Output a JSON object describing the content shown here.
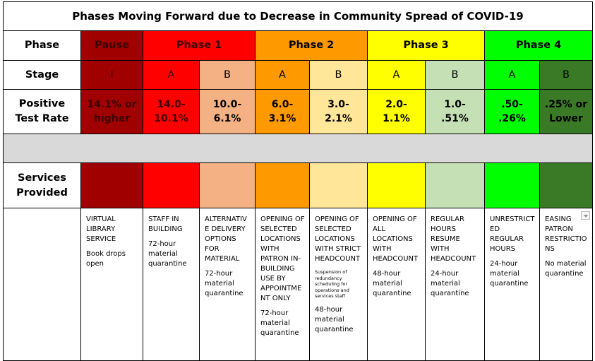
{
  "title": "Phases Moving Forward due to Decrease in Community Spread of COVID-19",
  "row_labels": {
    "phase": "Phase",
    "stage": "Stage",
    "rate_line1": "Positive",
    "rate_line2": "Test Rate",
    "services_line1": "Services",
    "services_line2": "Provided"
  },
  "phases": [
    {
      "label": "Pause",
      "color": "#a00000"
    },
    {
      "label": "Phase 1",
      "color": "#ff0000"
    },
    {
      "label": "Phase 2",
      "color": "#ff9900"
    },
    {
      "label": "Phase 3",
      "color": "#ffff00"
    },
    {
      "label": "Phase 4",
      "color": "#00ff00"
    }
  ],
  "stages": [
    {
      "stage": "I",
      "rate1": "14.1% or",
      "rate2": "higher",
      "color": "#a00000",
      "service": "VIRTUAL LIBRARY SERVICE",
      "note": "Book drops open",
      "small": "",
      "quarantine": ""
    },
    {
      "stage": "A",
      "rate1": "14.0-",
      "rate2": "10.1%",
      "color": "#ff0000",
      "service": "STAFF IN BUILDING",
      "note": "",
      "small": "",
      "quarantine": "72-hour material quarantine"
    },
    {
      "stage": "B",
      "rate1": "10.0-",
      "rate2": "6.1%",
      "color": "#f4b183",
      "service": "ALTERNATIVE DELIVERY OPTIONS FOR MATERIAL",
      "note": "",
      "small": "",
      "quarantine": "72-hour material quarantine"
    },
    {
      "stage": "A",
      "rate1": "6.0-",
      "rate2": "3.1%",
      "color": "#ff9900",
      "service": "OPENING OF SELECTED LOCATIONS WITH PATRON IN-BUILDING USE BY APPOINTMENT ONLY",
      "note": "",
      "small": "",
      "quarantine": "72-hour material quarantine"
    },
    {
      "stage": "B",
      "rate1": "3.0-",
      "rate2": "2.1%",
      "color": "#ffe699",
      "service": "OPENING OF SELECTED LOCATIONS WITH STRICT HEADCOUNT",
      "note": "",
      "small": "Suspension of redundancy scheduling for operations and services staff",
      "quarantine": "48-hour material quarantine"
    },
    {
      "stage": "A",
      "rate1": "2.0-",
      "rate2": "1.1%",
      "color": "#ffff00",
      "service": "OPENING OF ALL LOCATIONS WITH HEADCOUNT",
      "note": "",
      "small": "",
      "quarantine": "48-hour material quarantine"
    },
    {
      "stage": "B",
      "rate1": "1.0-",
      "rate2": ".51%",
      "color": "#c5e0b4",
      "service": "REGULAR HOURS RESUME WITH HEADCOUNT",
      "note": "",
      "small": "",
      "quarantine": "24-hour material quarantine"
    },
    {
      "stage": "A",
      "rate1": ".50-",
      "rate2": ".26%",
      "color": "#00ff00",
      "service": "UNRESTRICTED REGULAR HOURS",
      "note": "",
      "small": "",
      "quarantine": "24-hour material quarantine"
    },
    {
      "stage": "B",
      "rate1": ".25% or",
      "rate2": "Lower",
      "color": "#3a7a27",
      "service": "EASING PATRON RESTRICTIONS",
      "note": "",
      "small": "",
      "quarantine": "No material quarantine"
    }
  ]
}
